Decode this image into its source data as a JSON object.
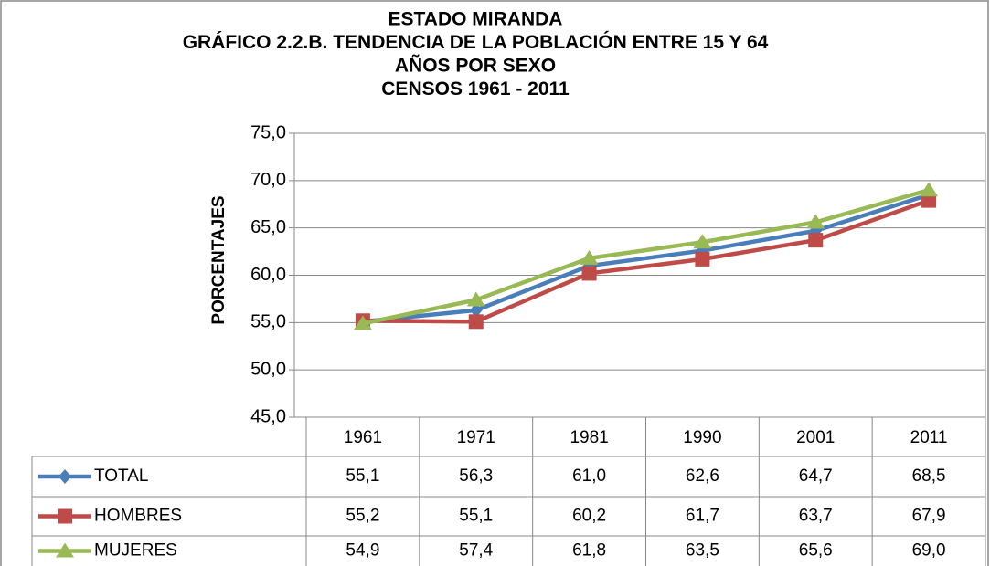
{
  "chart_data": {
    "type": "line",
    "title": [
      "ESTADO MIRANDA",
      "GRÁFICO 2.2.B. TENDENCIA DE LA POBLACIÓN ENTRE 15 Y 64",
      "AÑOS POR SEXO",
      "CENSOS 1961 - 2011"
    ],
    "y_label": "PORCENTAJES",
    "categories": [
      "1961",
      "1971",
      "1981",
      "1990",
      "2001",
      "2011"
    ],
    "series": [
      {
        "name": "TOTAL",
        "color": "#4a7ebb",
        "marker": "diamond",
        "values": [
          55.1,
          56.3,
          61.0,
          62.6,
          64.7,
          68.5
        ],
        "value_labels": [
          "55,1",
          "56,3",
          "61,0",
          "62,6",
          "64,7",
          "68,5"
        ]
      },
      {
        "name": "HOMBRES",
        "color": "#be4b48",
        "marker": "square",
        "values": [
          55.2,
          55.1,
          60.2,
          61.7,
          63.7,
          67.9
        ],
        "value_labels": [
          "55,2",
          "55,1",
          "60,2",
          "61,7",
          "63,7",
          "67,9"
        ]
      },
      {
        "name": "MUJERES",
        "color": "#98b954",
        "marker": "triangle",
        "values": [
          54.9,
          57.4,
          61.8,
          63.5,
          65.6,
          69.0
        ],
        "value_labels": [
          "54,9",
          "57,4",
          "61,8",
          "63,5",
          "65,6",
          "69,0"
        ]
      }
    ],
    "ylim": [
      45,
      75
    ],
    "yticks": [
      {
        "value": 45,
        "label": "45,0"
      },
      {
        "value": 50,
        "label": "50,0"
      },
      {
        "value": 55,
        "label": "55,0"
      },
      {
        "value": 60,
        "label": "60,0"
      },
      {
        "value": 65,
        "label": "65,0"
      },
      {
        "value": 70,
        "label": "70,0"
      },
      {
        "value": 75,
        "label": "75,0"
      }
    ],
    "grid": true
  }
}
